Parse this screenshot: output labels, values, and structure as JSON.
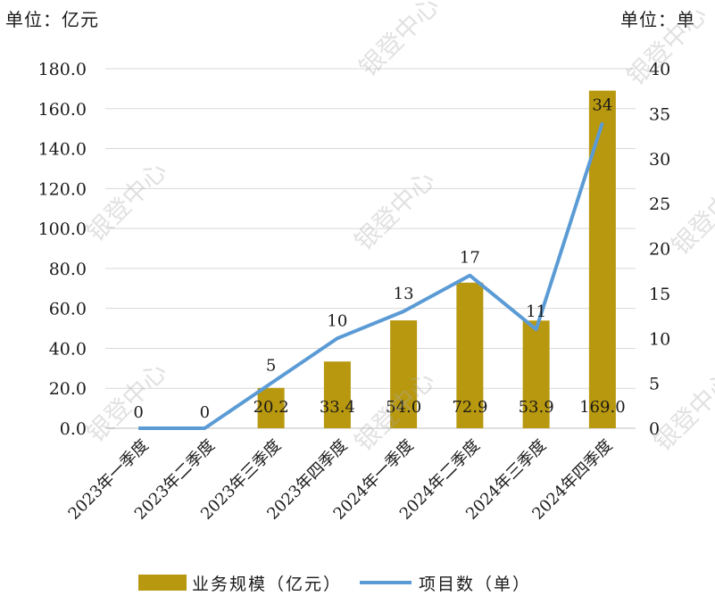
{
  "unit_left": "单位：亿元",
  "unit_right": "单位：单",
  "watermark": "银登中心",
  "colors": {
    "bar": "#b8980e",
    "line": "#5b9bd5",
    "grid": "#d9d9d9"
  },
  "chart_data": {
    "type": "bar",
    "categories": [
      "2023年一季度",
      "2023年二季度",
      "2023年三季度",
      "2023年四季度",
      "2024年一季度",
      "2024年二季度",
      "2024年三季度",
      "2024年四季度"
    ],
    "series": [
      {
        "name": "业务规模（亿元）",
        "type": "bar",
        "axis": "left",
        "values": [
          0,
          0,
          20.2,
          33.4,
          54.0,
          72.9,
          53.9,
          169.0
        ],
        "labels": [
          "",
          "",
          "20.2",
          "33.4",
          "54.0",
          "72.9",
          "53.9",
          "169.0"
        ]
      },
      {
        "name": "项目数（单）",
        "type": "line",
        "axis": "right",
        "values": [
          0,
          0,
          5,
          10,
          13,
          17,
          11,
          34
        ],
        "labels": [
          "0",
          "0",
          "5",
          "10",
          "13",
          "17",
          "11",
          "34"
        ]
      }
    ],
    "y_left": {
      "lim": [
        0,
        180
      ],
      "ticks": [
        "0.0",
        "20.0",
        "40.0",
        "60.0",
        "80.0",
        "100.0",
        "120.0",
        "140.0",
        "160.0",
        "180.0"
      ]
    },
    "y_right": {
      "lim": [
        0,
        40
      ],
      "ticks": [
        "0",
        "5",
        "10",
        "15",
        "20",
        "25",
        "30",
        "35",
        "40"
      ]
    },
    "grid": true,
    "legend": "bottom"
  }
}
